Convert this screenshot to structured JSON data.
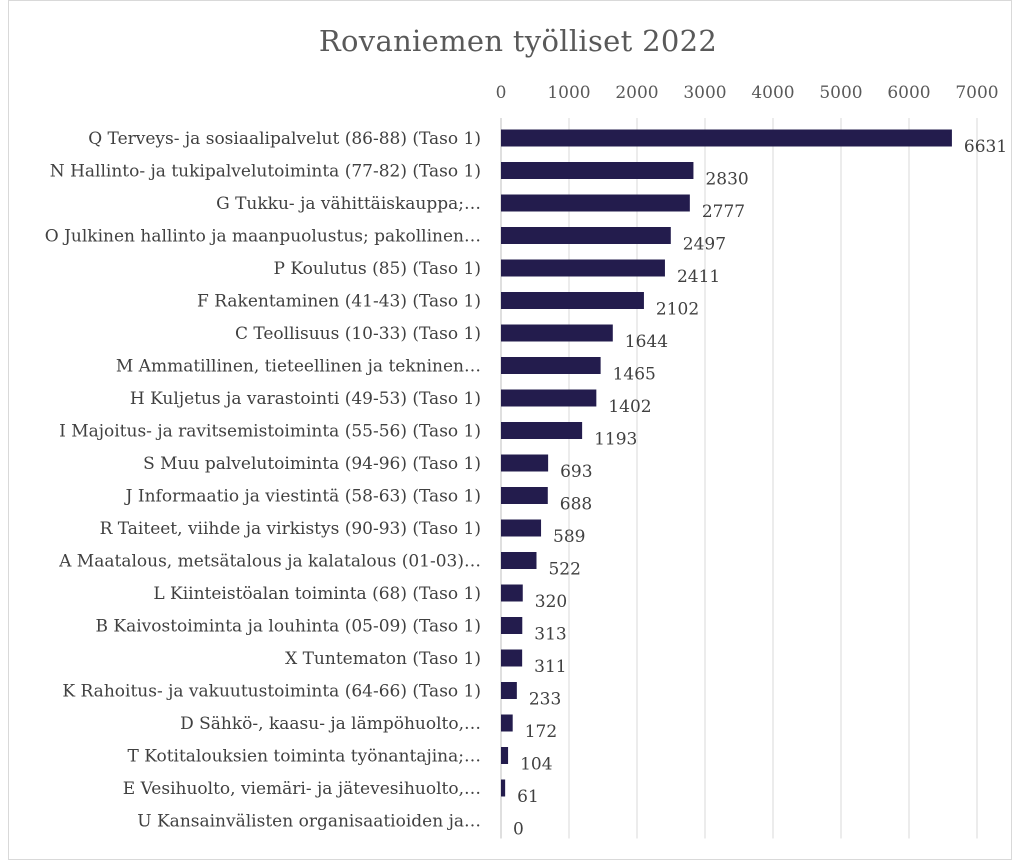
{
  "chart_data": {
    "type": "bar",
    "orientation": "horizontal",
    "title": "Rovaniemen työlliset 2022",
    "xlabel": "",
    "ylabel": "",
    "xlim": [
      0,
      7000
    ],
    "x_ticks": [
      0,
      1000,
      2000,
      3000,
      4000,
      5000,
      6000,
      7000
    ],
    "x_axis_position": "top",
    "grid": true,
    "legend": "none",
    "bar_color": "#231c4d",
    "categories": [
      "Q Terveys- ja sosiaalipalvelut (86-88) (Taso 1)",
      "N Hallinto- ja tukipalvelutoiminta (77-82) (Taso 1)",
      "G Tukku- ja vähittäiskauppa;…",
      "O Julkinen hallinto ja maanpuolustus; pakollinen…",
      "P Koulutus (85) (Taso 1)",
      "F Rakentaminen (41-43) (Taso 1)",
      "C Teollisuus (10-33) (Taso 1)",
      "M Ammatillinen, tieteellinen ja tekninen…",
      "H Kuljetus ja varastointi (49-53) (Taso 1)",
      "I Majoitus- ja ravitsemistoiminta (55-56) (Taso 1)",
      "S Muu palvelutoiminta (94-96) (Taso 1)",
      "J Informaatio ja viestintä (58-63) (Taso 1)",
      "R Taiteet, viihde ja virkistys (90-93) (Taso 1)",
      "A Maatalous, metsätalous ja kalatalous (01-03)…",
      "L Kiinteistöalan toiminta (68) (Taso 1)",
      "B Kaivostoiminta ja louhinta (05-09) (Taso 1)",
      "X Tuntematon (Taso 1)",
      "K Rahoitus- ja vakuutustoiminta (64-66) (Taso 1)",
      "D Sähkö-, kaasu- ja lämpöhuolto,…",
      "T Kotitalouksien toiminta työnantajina;…",
      "E Vesihuolto, viemäri- ja jätevesihuolto,…",
      "U Kansainvälisten organisaatioiden ja…"
    ],
    "values": [
      6631,
      2830,
      2777,
      2497,
      2411,
      2102,
      1644,
      1465,
      1402,
      1193,
      693,
      688,
      589,
      522,
      320,
      313,
      311,
      233,
      172,
      104,
      61,
      0
    ]
  }
}
